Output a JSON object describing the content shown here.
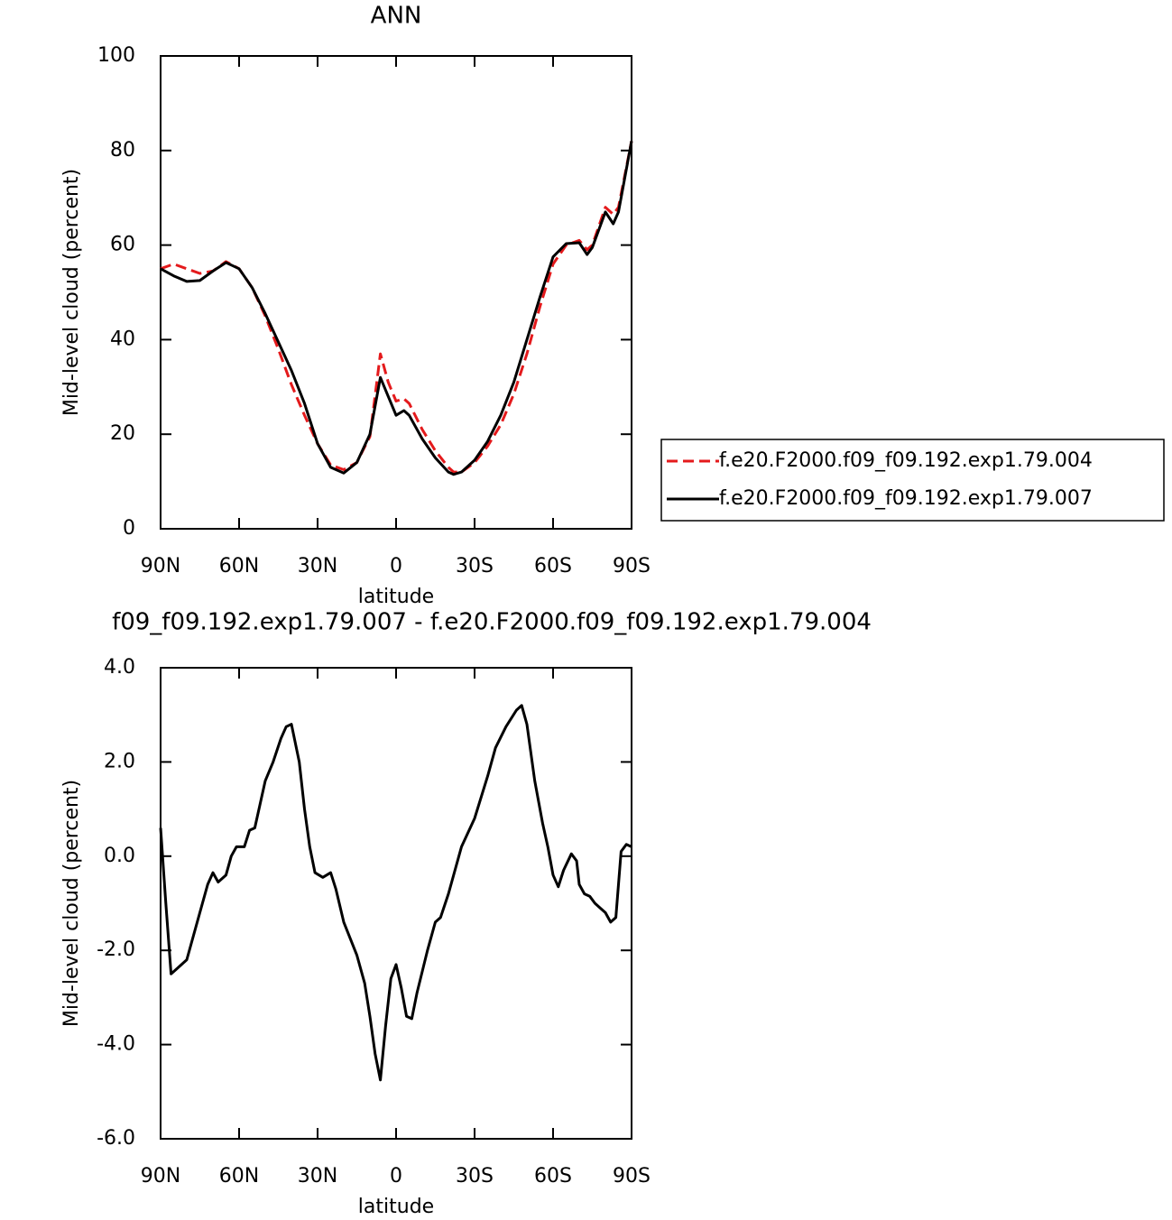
{
  "chart_data": [
    {
      "type": "line",
      "title": "ANN",
      "x_label": "latitude",
      "y_label": "Mid-level cloud (percent)",
      "xlim": [
        90,
        -90
      ],
      "ylim": [
        0,
        100
      ],
      "xticks": [
        {
          "value": 90,
          "label": "90N"
        },
        {
          "value": 60,
          "label": "60N"
        },
        {
          "value": 30,
          "label": "30N"
        },
        0,
        {
          "value": -30,
          "label": "30S"
        },
        {
          "value": -60,
          "label": "60S"
        },
        {
          "value": -90,
          "label": "90S"
        }
      ],
      "yticks": [
        0,
        20,
        40,
        60,
        80,
        100
      ],
      "legend": "outside-right",
      "x": [
        90,
        85,
        80,
        75,
        70,
        65,
        60,
        55,
        50,
        45,
        40,
        35,
        30,
        25,
        20,
        15,
        10,
        6,
        3,
        0,
        -3,
        -5,
        -10,
        -15,
        -20,
        -22,
        -25,
        -30,
        -35,
        -40,
        -45,
        -50,
        -55,
        -60,
        -65,
        -70,
        -73,
        -75,
        -80,
        -83,
        -85,
        -90
      ],
      "series": [
        {
          "name": "f.e20.F2000.f09_f09.192.exp1.79.004",
          "color": "#e41a1c",
          "dashed": true,
          "values": [
            55,
            56,
            55,
            54,
            54.5,
            56.5,
            55,
            51,
            45,
            38,
            30.5,
            24,
            18,
            13.5,
            12.5,
            14,
            19.5,
            37,
            31,
            27,
            27.5,
            26.5,
            21,
            16.5,
            13,
            12,
            12,
            14,
            17.5,
            22,
            28.5,
            37,
            47,
            56,
            60,
            61,
            59,
            60,
            68,
            66.5,
            68,
            82
          ]
        },
        {
          "name": "f.e20.F2000.f09_f09.192.exp1.79.007",
          "color": "#000000",
          "dashed": false,
          "values": [
            55,
            53.5,
            52.3,
            52.5,
            54.5,
            56.3,
            55,
            51,
            45.5,
            39.5,
            33.5,
            26.5,
            18,
            13,
            11.8,
            14,
            20,
            32,
            28,
            24,
            25,
            24,
            19,
            15,
            12,
            11.5,
            12,
            14.5,
            18.5,
            24,
            31,
            40,
            49,
            57.5,
            60.3,
            60.5,
            58,
            59.5,
            67,
            64.5,
            67,
            82
          ]
        }
      ]
    },
    {
      "type": "line",
      "title": "f09_f09.192.exp1.79.007 - f.e20.F2000.f09_f09.192.exp1.79.004",
      "x_label": "latitude",
      "y_label": "Mid-level cloud (percent)",
      "xlim": [
        90,
        -90
      ],
      "ylim": [
        -6,
        4
      ],
      "xticks": [
        {
          "value": 90,
          "label": "90N"
        },
        {
          "value": 60,
          "label": "60N"
        },
        {
          "value": 30,
          "label": "30N"
        },
        0,
        {
          "value": -30,
          "label": "30S"
        },
        {
          "value": -60,
          "label": "60S"
        },
        {
          "value": -90,
          "label": "90S"
        }
      ],
      "yticks": [
        {
          "value": -6,
          "label": "-6.0"
        },
        {
          "value": -4,
          "label": "-4.0"
        },
        {
          "value": -2,
          "label": "-2.0"
        },
        {
          "value": 0,
          "label": "0.0"
        },
        {
          "value": 2,
          "label": "2.0"
        },
        {
          "value": 4,
          "label": "4.0"
        }
      ],
      "x": [
        90,
        88,
        86,
        84,
        80,
        75,
        72,
        70,
        68,
        65,
        63,
        61,
        58,
        56,
        54,
        50,
        47,
        44,
        42,
        40,
        37,
        35,
        33,
        31,
        28,
        25,
        23,
        20,
        15,
        12,
        10,
        8,
        6,
        4,
        2,
        0,
        -2,
        -4,
        -6,
        -8,
        -12,
        -15,
        -17,
        -20,
        -25,
        -30,
        -35,
        -38,
        -42,
        -46,
        -48,
        -50,
        -53,
        -56,
        -58,
        -60,
        -62,
        -64,
        -67,
        -69,
        -70,
        -72,
        -74,
        -76,
        -78,
        -80,
        -82,
        -84,
        -86,
        -88,
        -90
      ],
      "color": "#000000",
      "values": [
        0.6,
        -1,
        -2.5,
        -2.4,
        -2.2,
        -1.2,
        -0.6,
        -0.35,
        -0.55,
        -0.4,
        0,
        0.2,
        0.2,
        0.55,
        0.6,
        1.6,
        2,
        2.5,
        2.75,
        2.8,
        2,
        1,
        0.2,
        -0.35,
        -0.45,
        -0.35,
        -0.7,
        -1.4,
        -2.1,
        -2.7,
        -3.4,
        -4.2,
        -4.75,
        -3.6,
        -2.6,
        -2.3,
        -2.8,
        -3.4,
        -3.45,
        -2.9,
        -2,
        -1.4,
        -1.3,
        -0.8,
        0.2,
        0.8,
        1.7,
        2.3,
        2.75,
        3.1,
        3.2,
        2.8,
        1.6,
        0.7,
        0.2,
        -0.4,
        -0.65,
        -0.3,
        0.05,
        -0.1,
        -0.6,
        -0.8,
        -0.85,
        -1,
        -1.1,
        -1.2,
        -1.4,
        -1.3,
        0.1,
        0.25,
        0.2
      ]
    }
  ]
}
